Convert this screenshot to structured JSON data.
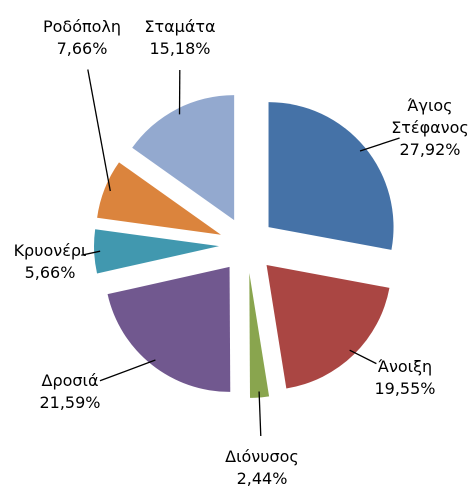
{
  "chart_data": {
    "type": "pie",
    "categories": [
      "Άγιος Στέφανος",
      "Άνοιξη",
      "Διόνυσος",
      "Δροσιά",
      "Κρυονέρι",
      "Ροδόπολη",
      "Σταμάτα"
    ],
    "values": [
      27.92,
      19.55,
      2.44,
      21.59,
      5.66,
      7.66,
      15.18
    ],
    "value_labels": [
      "27,92%",
      "19,55%",
      "2,44%",
      "21,59%",
      "5,66%",
      "7,66%",
      "15,18%"
    ],
    "colors": [
      "#4572a7",
      "#aa4643",
      "#89a54e",
      "#71588f",
      "#4198af",
      "#db843d",
      "#93a9cf"
    ]
  }
}
